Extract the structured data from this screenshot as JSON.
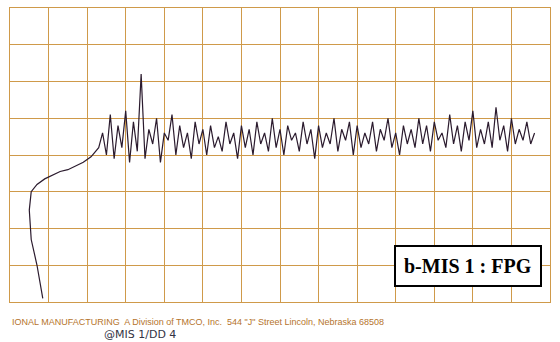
{
  "chart_data": {
    "type": "line",
    "x": [
      0.85,
      0.7,
      0.55,
      0.5,
      0.55,
      0.7,
      0.9,
      1.1,
      1.3,
      1.5,
      1.7,
      1.9,
      2.1,
      2.3,
      2.4,
      2.5,
      2.6,
      2.7,
      2.8,
      2.9,
      3.0,
      3.1,
      3.2,
      3.3,
      3.4,
      3.5,
      3.6,
      3.7,
      3.8,
      3.9,
      4.0,
      4.1,
      4.2,
      4.3,
      4.4,
      4.5,
      4.6,
      4.7,
      4.8,
      4.9,
      5.0,
      5.1,
      5.2,
      5.3,
      5.4,
      5.5,
      5.6,
      5.7,
      5.8,
      5.9,
      6.0,
      6.1,
      6.2,
      6.3,
      6.4,
      6.5,
      6.6,
      6.7,
      6.8,
      6.9,
      7.0,
      7.1,
      7.2,
      7.3,
      7.4,
      7.5,
      7.6,
      7.7,
      7.8,
      7.9,
      8.0,
      8.1,
      8.2,
      8.3,
      8.4,
      8.5,
      8.6,
      8.7,
      8.8,
      8.9,
      9.0,
      9.1,
      9.2,
      9.3,
      9.4,
      9.5,
      9.6,
      9.7,
      9.8,
      9.9,
      10.0,
      10.1,
      10.2,
      10.3,
      10.4,
      10.5,
      10.6,
      10.7,
      10.8,
      10.9,
      11.0,
      11.1,
      11.2,
      11.3,
      11.4,
      11.5,
      11.6,
      11.7,
      11.8,
      11.9,
      12.0,
      12.1,
      12.2,
      12.3,
      12.4,
      12.5,
      12.6,
      12.7,
      12.8,
      12.9,
      13.0,
      13.1,
      13.2,
      13.3,
      13.4,
      13.5,
      13.6
    ],
    "values": [
      0.1,
      1.0,
      1.7,
      2.5,
      3.0,
      3.2,
      3.35,
      3.45,
      3.55,
      3.6,
      3.7,
      3.8,
      3.95,
      4.2,
      4.6,
      4.0,
      5.1,
      3.9,
      4.8,
      4.2,
      5.2,
      3.8,
      4.9,
      4.1,
      6.2,
      3.9,
      4.7,
      4.3,
      5.0,
      3.8,
      4.6,
      4.4,
      5.1,
      4.0,
      4.8,
      4.2,
      4.6,
      3.9,
      4.9,
      4.3,
      4.7,
      4.0,
      4.8,
      4.2,
      4.5,
      4.1,
      4.9,
      4.3,
      4.6,
      3.9,
      4.8,
      4.2,
      4.7,
      4.0,
      4.9,
      4.3,
      4.6,
      4.1,
      5.0,
      4.2,
      4.7,
      4.0,
      4.8,
      4.4,
      4.6,
      4.1,
      4.9,
      4.3,
      4.7,
      3.9,
      4.8,
      4.2,
      4.6,
      4.3,
      5.0,
      4.1,
      4.7,
      4.4,
      4.9,
      4.0,
      4.8,
      4.2,
      4.6,
      4.3,
      4.9,
      4.1,
      4.7,
      4.4,
      5.0,
      4.2,
      4.6,
      4.0,
      4.8,
      4.3,
      4.7,
      4.2,
      5.0,
      4.3,
      4.8,
      4.1,
      4.9,
      4.4,
      4.6,
      4.2,
      5.1,
      4.3,
      4.8,
      4.1,
      4.9,
      4.4,
      5.2,
      4.2,
      4.7,
      4.3,
      4.9,
      4.2,
      5.3,
      4.4,
      4.8,
      4.1,
      5.0,
      4.3,
      4.7,
      4.4,
      4.9,
      4.3,
      4.6
    ],
    "color": "#2b1b2e",
    "xlim": [
      0,
      14
    ],
    "ylim": [
      0,
      8
    ],
    "xticks": [
      0,
      1,
      2,
      3,
      4,
      5,
      6,
      7,
      8,
      9,
      10,
      11,
      12,
      13,
      14
    ],
    "yticks": [
      0,
      1,
      2,
      3,
      4,
      5,
      6,
      7,
      8
    ],
    "grid": true,
    "tick_labels": false,
    "annotations": [
      "b-MIS 1 : FPG",
      "IONAL MANUFACTURING  A Division of TMCO, Inc.  544 \"J\" Street Lincoln, Nebraska 68508",
      "@MIS 1/DD 4"
    ]
  }
}
